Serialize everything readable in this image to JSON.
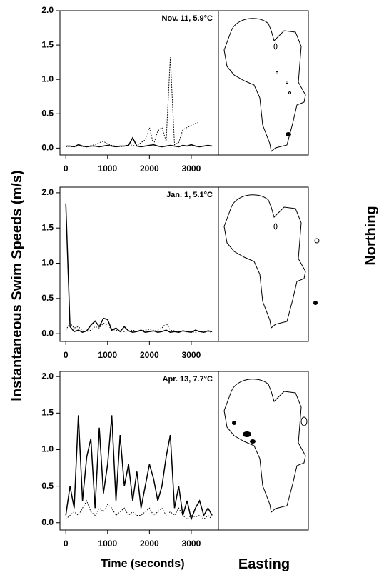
{
  "figure": {
    "ylabel": "Instantaneous Swim Speeds (m/s)",
    "xlabel": "Time (seconds)",
    "map_xlabel": "Easting",
    "map_ylabel": "Northing"
  },
  "chart_data": [
    {
      "type": "line",
      "annotation": "Nov. 11, 5.9°C",
      "x": [
        0,
        100,
        200,
        300,
        400,
        500,
        600,
        700,
        800,
        900,
        1000,
        1100,
        1200,
        1300,
        1400,
        1500,
        1600,
        1700,
        1800,
        1900,
        2000,
        2100,
        2200,
        2300,
        2400,
        2500,
        2600,
        2700,
        2800,
        2900,
        3000,
        3100,
        3200,
        3300,
        3400,
        3500
      ],
      "series": [
        {
          "style": "solid",
          "color": "#000000",
          "values": [
            0.03,
            0.03,
            0.02,
            0.05,
            0.03,
            0.02,
            0.03,
            0.03,
            0.02,
            0.03,
            0.04,
            0.03,
            0.02,
            0.03,
            0.03,
            0.04,
            0.15,
            0.03,
            0.02,
            0.03,
            0.04,
            0.05,
            0.03,
            0.02,
            0.03,
            0.04,
            0.03,
            0.02,
            0.04,
            0.03,
            0.05,
            0.03,
            0.02,
            0.03,
            0.04,
            0.03
          ]
        },
        {
          "style": "dotted",
          "color": "#000000",
          "values": [
            0.02,
            0.02,
            0.02,
            0.03,
            0.02,
            0.02,
            0.04,
            0.05,
            0.08,
            0.1,
            0.06,
            0.04,
            0.03,
            0.02,
            0.03,
            0.05,
            0.04,
            0.03,
            0.08,
            0.12,
            0.3,
            0.05,
            0.25,
            0.3,
            0.1,
            1.32,
            0.05,
            0.08,
            0.27,
            0.3,
            0.33,
            0.36,
            0.38,
            null,
            null,
            null
          ]
        }
      ],
      "xlim": [
        -140,
        3650
      ],
      "xticks": [
        0,
        1000,
        2000,
        3000
      ],
      "ylim": [
        -0.1,
        2.0
      ],
      "yticks": [
        {
          "value": 0,
          "label": "0.0"
        },
        {
          "value": 0.5,
          "label": "0.5"
        },
        {
          "value": 1,
          "label": "1.0"
        },
        {
          "value": 1.5,
          "label": "1.5"
        },
        {
          "value": 2,
          "label": "2.0"
        }
      ]
    },
    {
      "type": "line",
      "annotation": "Jan. 1, 5.1°C",
      "x": [
        0,
        100,
        200,
        300,
        400,
        500,
        600,
        700,
        800,
        900,
        1000,
        1100,
        1200,
        1300,
        1400,
        1500,
        1600,
        1700,
        1800,
        1900,
        2000,
        2100,
        2200,
        2300,
        2400,
        2500,
        2600,
        2700,
        2800,
        2900,
        3000,
        3100,
        3200,
        3300,
        3400,
        3500
      ],
      "series": [
        {
          "style": "solid",
          "color": "#000000",
          "values": [
            1.85,
            0.1,
            0.03,
            0.05,
            0.02,
            0.04,
            0.12,
            0.18,
            0.1,
            0.22,
            0.2,
            0.05,
            0.08,
            0.03,
            0.1,
            0.04,
            0.02,
            0.03,
            0.05,
            0.02,
            0.03,
            0.04,
            0.02,
            0.03,
            0.05,
            0.02,
            0.03,
            0.02,
            0.04,
            0.03,
            0.02,
            0.05,
            0.03,
            0.02,
            0.04,
            0.03
          ]
        },
        {
          "style": "dotted",
          "color": "#000000",
          "values": [
            0.05,
            0.15,
            0.08,
            0.1,
            0.04,
            0.03,
            0.05,
            0.1,
            0.08,
            0.15,
            0.12,
            0.06,
            0.05,
            0.04,
            0.03,
            0.04,
            0.05,
            0.03,
            0.04,
            0.05,
            0.06,
            0.04,
            0.05,
            0.08,
            0.15,
            0.05,
            0.04,
            0.03,
            0.04,
            0.02,
            0.03,
            0.02,
            0.03,
            0.02,
            0.03,
            0.02
          ]
        }
      ],
      "xlim": [
        -140,
        3650
      ],
      "xticks": [
        0,
        1000,
        2000,
        3000
      ],
      "ylim": [
        -0.11,
        2.08
      ],
      "yticks": [
        {
          "value": 0,
          "label": "0.0"
        },
        {
          "value": 0.5,
          "label": "0.5"
        },
        {
          "value": 1,
          "label": "1.0"
        },
        {
          "value": 1.5,
          "label": "1.5"
        },
        {
          "value": 2,
          "label": "2.0"
        }
      ]
    },
    {
      "type": "line",
      "annotation": "Apr. 13, 7.7°C",
      "x": [
        0,
        100,
        200,
        300,
        400,
        500,
        600,
        700,
        800,
        900,
        1000,
        1100,
        1200,
        1300,
        1400,
        1500,
        1600,
        1700,
        1800,
        1900,
        2000,
        2100,
        2200,
        2300,
        2400,
        2500,
        2600,
        2700,
        2800,
        2900,
        3000,
        3100,
        3200,
        3300,
        3400,
        3500
      ],
      "series": [
        {
          "style": "solid",
          "color": "#000000",
          "values": [
            0.1,
            0.5,
            0.2,
            1.47,
            0.3,
            0.9,
            1.15,
            0.2,
            1.3,
            0.4,
            0.8,
            1.47,
            0.3,
            1.2,
            0.5,
            0.8,
            0.3,
            0.7,
            0.2,
            0.5,
            0.8,
            0.6,
            0.3,
            0.5,
            0.9,
            1.2,
            0.2,
            0.5,
            0.1,
            0.3,
            0.05,
            0.2,
            0.3,
            0.1,
            0.2,
            0.1
          ]
        },
        {
          "style": "dotted",
          "color": "#000000",
          "values": [
            0.05,
            0.1,
            0.15,
            0.1,
            0.2,
            0.3,
            0.15,
            0.1,
            0.2,
            0.15,
            0.25,
            0.2,
            0.1,
            0.15,
            0.2,
            0.1,
            0.15,
            0.1,
            0.1,
            0.15,
            0.2,
            0.1,
            0.15,
            0.2,
            0.1,
            0.15,
            0.1,
            0.2,
            0.1,
            0.05,
            0.1,
            0.08,
            0.1,
            0.05,
            0.1,
            0.05
          ]
        }
      ],
      "xlim": [
        -140,
        3650
      ],
      "xticks": [
        0,
        1000,
        2000,
        3000
      ],
      "ylim": [
        -0.1,
        2.07
      ],
      "yticks": [
        {
          "value": 0,
          "label": "0.0"
        },
        {
          "value": 0.5,
          "label": "0.5"
        },
        {
          "value": 1,
          "label": "1.0"
        },
        {
          "value": 1.5,
          "label": "1.5"
        },
        {
          "value": 2,
          "label": "2.0"
        }
      ]
    }
  ]
}
